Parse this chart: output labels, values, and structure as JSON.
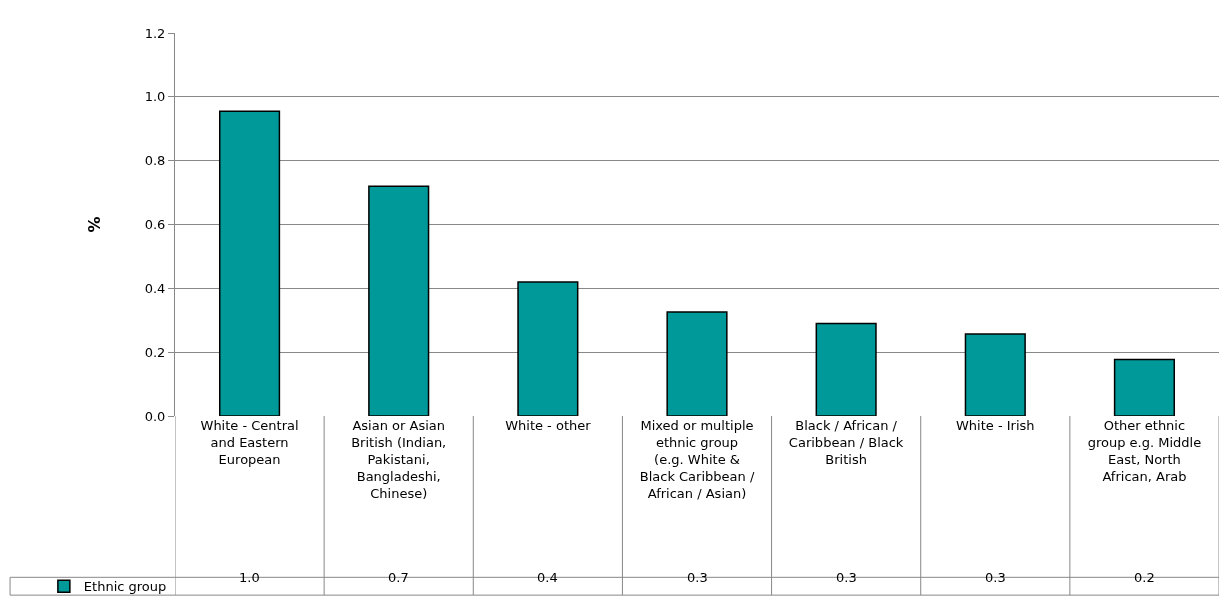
{
  "chart_data": {
    "type": "bar",
    "ylabel": "%",
    "categories": [
      "White - Central and Eastern European",
      "Asian or Asian British (Indian, Pakistani, Bangladeshi, Chinese)",
      "White - other",
      "Mixed or multiple ethnic group (e.g. White & Black Caribbean / African / Asian)",
      "Black / African / Caribbean / Black British",
      "White - Irish",
      "Other ethnic group e.g. Middle East, North African, Arab"
    ],
    "series": [
      {
        "name": "Ethnic group",
        "color": "#009999",
        "values": [
          0.955,
          0.72,
          0.42,
          0.326,
          0.29,
          0.257,
          0.177
        ],
        "value_labels": [
          "1.0",
          "0.7",
          "0.4",
          "0.3",
          "0.3",
          "0.3",
          "0.2"
        ]
      }
    ],
    "ylim": [
      0,
      1.2
    ],
    "yticks": [
      {
        "value": 0,
        "label": "0.0"
      },
      {
        "value": 0.2,
        "label": "0.2"
      },
      {
        "value": 0.4,
        "label": "0.4"
      },
      {
        "value": 0.6,
        "label": "0.6"
      },
      {
        "value": 0.8,
        "label": "0.8"
      },
      {
        "value": 1,
        "label": "1.0"
      },
      {
        "value": 1.2,
        "label": "1.2"
      }
    ],
    "grid": "y",
    "legend": "bottom left"
  }
}
